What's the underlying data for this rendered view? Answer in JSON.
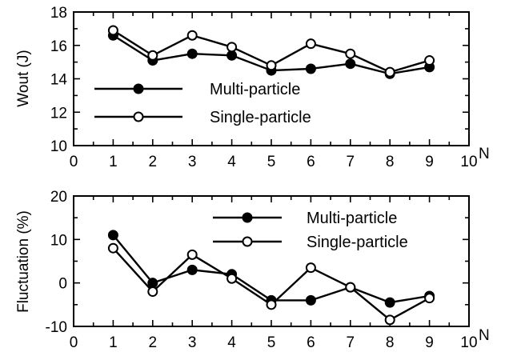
{
  "chart_data": [
    {
      "type": "line",
      "xlabel": "N",
      "ylabel": "Wout (J)",
      "xlim": [
        0,
        10
      ],
      "ylim": [
        10,
        18
      ],
      "xticks": [
        "0",
        "1",
        "2",
        "3",
        "4",
        "5",
        "6",
        "7",
        "8",
        "9",
        "10"
      ],
      "yticks": [
        "10",
        "12",
        "14",
        "16",
        "18"
      ],
      "grid": false,
      "legend_position": "lower-left",
      "x": [
        1,
        2,
        3,
        4,
        5,
        6,
        7,
        8,
        9
      ],
      "series": [
        {
          "name": "Multi-particle",
          "marker": "filled-circle",
          "values": [
            16.6,
            15.1,
            15.5,
            15.4,
            14.5,
            14.6,
            14.9,
            14.3,
            14.7
          ]
        },
        {
          "name": "Single-particle",
          "marker": "open-circle",
          "values": [
            16.9,
            15.4,
            16.6,
            15.9,
            14.8,
            16.1,
            15.5,
            14.4,
            15.1
          ]
        }
      ]
    },
    {
      "type": "line",
      "xlabel": "N",
      "ylabel": "Fluctuation (%)",
      "xlim": [
        0,
        10
      ],
      "ylim": [
        -10,
        20
      ],
      "xticks": [
        "0",
        "1",
        "2",
        "3",
        "4",
        "5",
        "6",
        "7",
        "8",
        "9",
        "10"
      ],
      "yticks": [
        "-10",
        "0",
        "10",
        "20"
      ],
      "grid": false,
      "legend_position": "top-right",
      "x": [
        1,
        2,
        3,
        4,
        5,
        6,
        7,
        8,
        9
      ],
      "series": [
        {
          "name": "Multi-particle",
          "marker": "filled-circle",
          "values": [
            11,
            0,
            3,
            2,
            -4,
            -4,
            -1,
            -4.5,
            -3
          ]
        },
        {
          "name": "Single-particle",
          "marker": "open-circle",
          "values": [
            8,
            -2,
            6.5,
            1,
            -5,
            3.5,
            -1,
            -8.5,
            -3.5
          ]
        }
      ]
    }
  ]
}
